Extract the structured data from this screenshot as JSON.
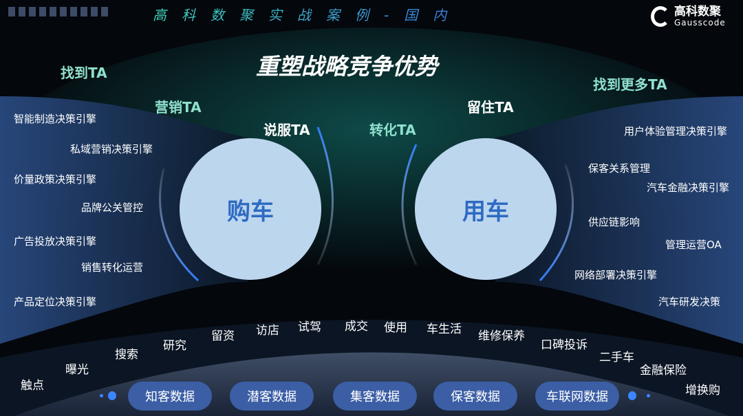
{
  "header": {
    "title": "高科数聚实战案例-国内",
    "logo_cn": "高科数聚",
    "logo_en": "Gausscode"
  },
  "main_title": "重塑战略竞争优势",
  "stages": {
    "find": "找到TA",
    "market": "营销TA",
    "persuade": "说服TA",
    "convert": "转化TA",
    "retain": "留住TA",
    "find_more": "找到更多TA"
  },
  "circles": {
    "buy": "购车",
    "use": "用车"
  },
  "left_items": [
    "智能制造决策引擎",
    "私域营销决策引擎",
    "价量政策决策引擎",
    "品牌公关管控",
    "广告投放决策引擎",
    "销售转化运营",
    "产品定位决策引擎"
  ],
  "right_items": [
    "用户体验管理决策引擎",
    "保客关系管理",
    "汽车金融决策引擎",
    "供应链影响",
    "管理运营OA",
    "网络部署决策引擎",
    "汽车研发决策"
  ],
  "journey": [
    "触点",
    "曝光",
    "搜索",
    "研究",
    "留资",
    "访店",
    "试驾",
    "成交",
    "使用",
    "车生活",
    "维修保养",
    "口碑投诉",
    "二手车",
    "金融保险",
    "增换购"
  ],
  "data_pills": [
    "知客数据",
    "潜客数据",
    "集客数据",
    "保客数据",
    "车联网数据"
  ],
  "colors": {
    "accent_teal": "#8fe0cd",
    "circle": "#bcd6ee",
    "circle_text": "#2e6bc2",
    "pill": "#3b5ea5",
    "arrow": "#2f7bff"
  }
}
